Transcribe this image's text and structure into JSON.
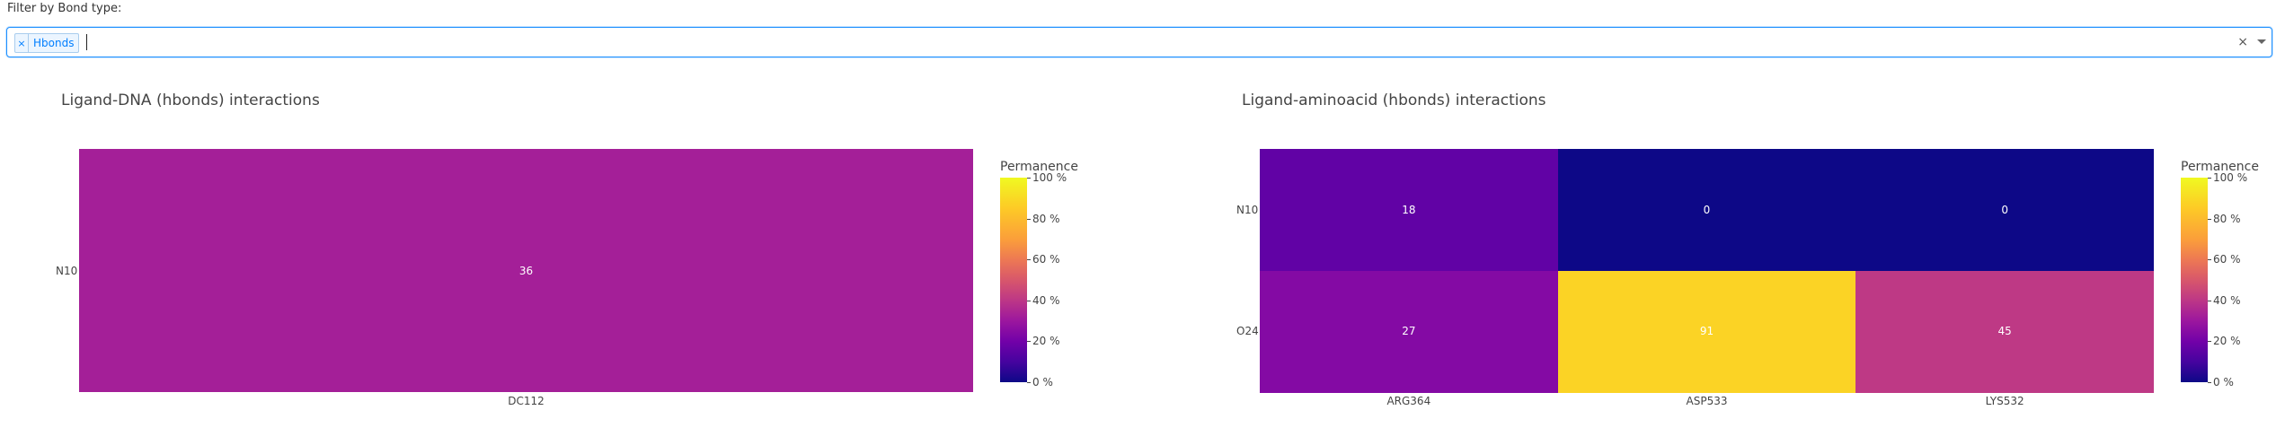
{
  "filter": {
    "label": "Filter by Bond type:",
    "selected_tags": [
      "Hbonds"
    ],
    "remove_glyph": "×",
    "clear_glyph": "×"
  },
  "colorscale": [
    "#0d0887",
    "#46039f",
    "#7201a8",
    "#9c179e",
    "#bd3786",
    "#d8576b",
    "#ed7953",
    "#fb9f3a",
    "#fdca26",
    "#f0f921"
  ],
  "chart_data": [
    {
      "type": "heatmap",
      "title": "Ligand-DNA (hbonds) interactions",
      "x": [
        "DC112"
      ],
      "y": [
        "N10"
      ],
      "z": [
        [
          36
        ]
      ],
      "colorbar": {
        "title": "Permanence",
        "range": [
          0,
          100
        ],
        "ticks": [
          "0 %",
          "20 %",
          "40 %",
          "60 %",
          "80 %",
          "100 %"
        ]
      }
    },
    {
      "type": "heatmap",
      "title": "Ligand-aminoacid (hbonds) interactions",
      "x": [
        "ARG364",
        "ASP533",
        "LYS532"
      ],
      "y": [
        "N10",
        "O24"
      ],
      "z": [
        [
          18,
          0,
          0
        ],
        [
          27,
          91,
          45
        ]
      ],
      "colorbar": {
        "title": "Permanence",
        "range": [
          0,
          100
        ],
        "ticks": [
          "0 %",
          "20 %",
          "40 %",
          "60 %",
          "80 %",
          "100 %"
        ]
      }
    }
  ]
}
